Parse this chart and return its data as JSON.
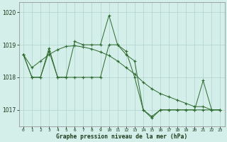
{
  "bg_color": "#d4eeea",
  "grid_color": "#b0d4cc",
  "line_color": "#2d6a2d",
  "series": [
    [
      1018.7,
      1018.0,
      1018.0,
      1018.8,
      1018.0,
      1018.0,
      1019.1,
      1019.0,
      1019.0,
      1019.0,
      1019.9,
      1019.0,
      1018.8,
      1018.0,
      1017.0,
      1016.8,
      1017.0,
      1017.0,
      1017.0,
      1017.0,
      1017.0,
      1017.9,
      1017.0,
      1017.0
    ],
    [
      1018.7,
      1018.0,
      1018.0,
      1018.9,
      1018.0,
      1018.0,
      1018.0,
      1018.0,
      1018.0,
      1018.0,
      1019.0,
      1019.0,
      1018.7,
      1018.5,
      1017.0,
      1016.75,
      1017.0,
      1017.0,
      1017.0,
      1017.0,
      1017.0,
      1017.0,
      1017.0,
      1017.0
    ],
    [
      1018.7,
      1018.3,
      1018.5,
      1018.7,
      1018.85,
      1018.95,
      1018.97,
      1018.93,
      1018.87,
      1018.78,
      1018.67,
      1018.5,
      1018.3,
      1018.1,
      1017.85,
      1017.65,
      1017.5,
      1017.4,
      1017.3,
      1017.2,
      1017.1,
      1017.1,
      1017.0,
      1017.0
    ]
  ],
  "x_ticks": [
    0,
    1,
    2,
    3,
    4,
    5,
    6,
    7,
    8,
    9,
    10,
    11,
    12,
    13,
    14,
    15,
    16,
    17,
    18,
    19,
    20,
    21,
    22,
    23
  ],
  "ylim": [
    1016.5,
    1020.3
  ],
  "yticks": [
    1017,
    1018,
    1019,
    1020
  ],
  "xlabel": "Graphe pression niveau de la mer (hPa)"
}
